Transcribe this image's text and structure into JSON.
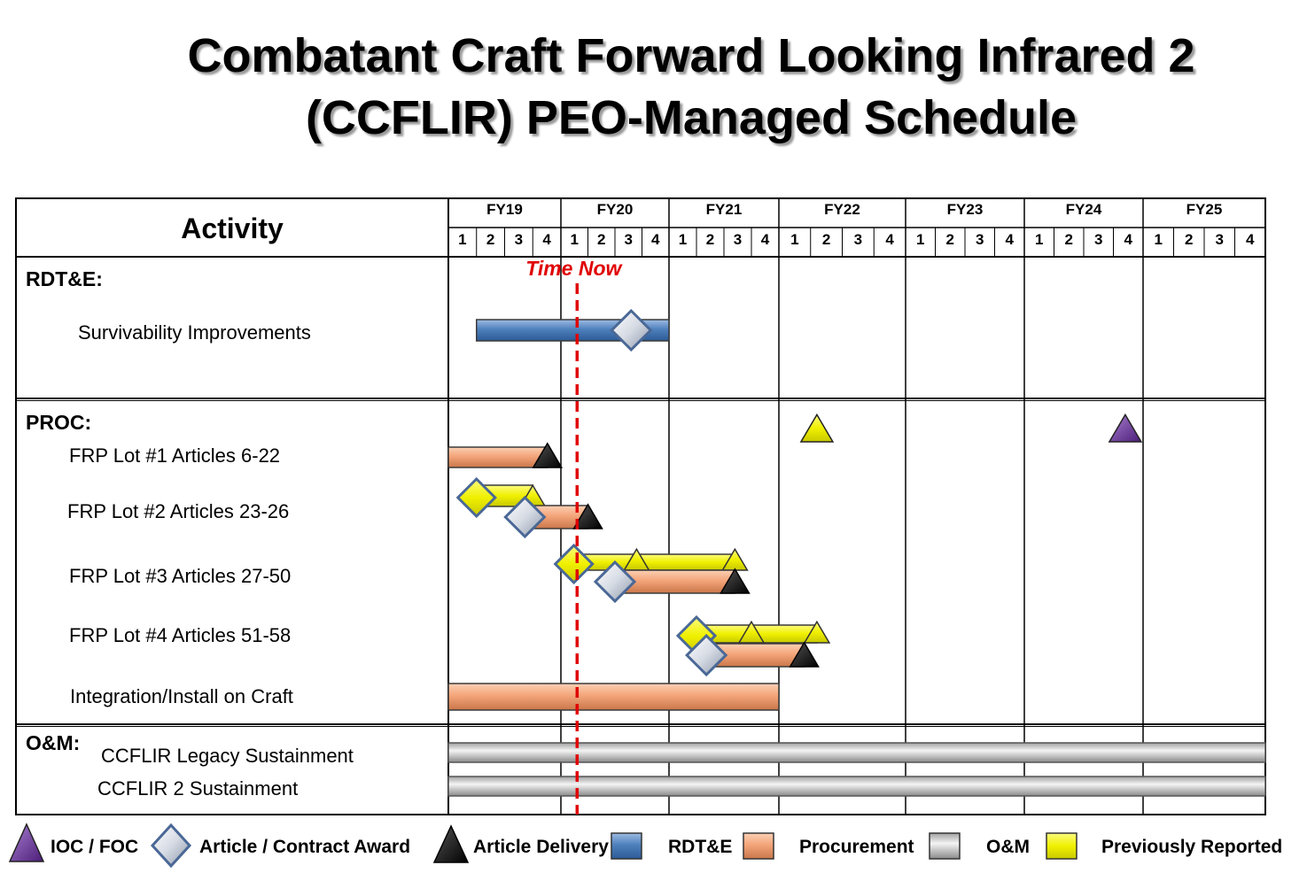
{
  "title": [
    "Combatant Craft Forward Looking Infrared 2",
    "(CCFLIR) PEO-Managed Schedule"
  ],
  "chart_data": {
    "type": "gantt",
    "activity_header": "Activity",
    "time_now_label": "Time Now",
    "time_now": 20.15,
    "fiscal_years": [
      "FY19",
      "FY20",
      "FY21",
      "FY22",
      "FY23",
      "FY24",
      "FY25"
    ],
    "quarters": [
      "1",
      "2",
      "3",
      "4"
    ],
    "sections": [
      {
        "label": "RDT&E:",
        "key": "rdte"
      },
      {
        "label": "PROC:",
        "key": "proc"
      },
      {
        "label": "O&M:",
        "key": "om"
      }
    ],
    "activities": [
      {
        "label": "Survivability Improvements",
        "section": "rdte",
        "type": "rdte",
        "start": 19.25,
        "end": 21.0,
        "milestones": [
          {
            "kind": "award",
            "at": 20.65
          }
        ]
      },
      {
        "label": "FRP Lot #1 Articles 6-22",
        "section": "proc",
        "type": "procurement",
        "start": 19.0,
        "end": 19.88,
        "milestones": [
          {
            "kind": "delivery",
            "at": 19.88
          }
        ]
      },
      {
        "label": "FRP Lot #2 Articles 23-26",
        "section": "proc",
        "type": "procurement",
        "start": 19.7,
        "end": 20.25,
        "previously_reported": {
          "start": 19.25,
          "end": 19.75,
          "milestones": [
            {
              "kind": "award",
              "at": 19.25
            },
            {
              "kind": "delivery",
              "at": 19.75
            }
          ]
        },
        "milestones": [
          {
            "kind": "award",
            "at": 19.68
          },
          {
            "kind": "delivery",
            "at": 20.25
          }
        ]
      },
      {
        "label": "FRP Lot #3 Articles 27-50",
        "section": "proc",
        "type": "procurement",
        "start": 20.5,
        "end": 21.6,
        "previously_reported": {
          "start": 20.12,
          "end": 21.6,
          "milestones": [
            {
              "kind": "award",
              "at": 20.12
            },
            {
              "kind": "delivery",
              "at": 20.7
            },
            {
              "kind": "delivery",
              "at": 21.6
            }
          ]
        },
        "milestones": [
          {
            "kind": "award",
            "at": 20.5
          },
          {
            "kind": "delivery",
            "at": 21.6
          }
        ]
      },
      {
        "label": "FRP Lot #4 Articles 51-58",
        "section": "proc",
        "type": "procurement",
        "start": 21.34,
        "end": 22.2,
        "previously_reported": {
          "start": 21.25,
          "end": 22.3,
          "milestones": [
            {
              "kind": "award",
              "at": 21.25
            },
            {
              "kind": "delivery",
              "at": 21.75
            },
            {
              "kind": "delivery",
              "at": 22.3
            }
          ]
        },
        "milestones": [
          {
            "kind": "award",
            "at": 21.34
          },
          {
            "kind": "delivery",
            "at": 22.2
          }
        ]
      },
      {
        "label": "Integration/Install on Craft",
        "section": "proc",
        "type": "procurement",
        "start": 19.0,
        "end": 22.0,
        "milestones": []
      },
      {
        "label": "CCFLIR Legacy Sustainment",
        "section": "om",
        "type": "om",
        "start": 19.0,
        "end": 26.0,
        "milestones": []
      },
      {
        "label": "CCFLIR 2 Sustainment",
        "section": "om",
        "type": "om",
        "start": 19.0,
        "end": 26.0,
        "milestones": []
      }
    ],
    "ioc_foc": [
      {
        "at": 22.3,
        "color": "previously_reported"
      },
      {
        "at": 24.85,
        "color": "ioc_foc"
      }
    ],
    "legend": [
      {
        "kind": "ioc_foc",
        "label": "IOC / FOC"
      },
      {
        "kind": "award",
        "label": "Article / Contract Award"
      },
      {
        "kind": "delivery",
        "label": "Article Delivery"
      },
      {
        "kind": "rdte",
        "label": "RDT&E"
      },
      {
        "kind": "procurement",
        "label": "Procurement"
      },
      {
        "kind": "om",
        "label": "O&M"
      },
      {
        "kind": "previously_reported",
        "label": "Previously Reported"
      }
    ],
    "colors": {
      "rdte": "#4f81bd",
      "procurement": "#f4a57a",
      "om": "#c8c8c8",
      "previously_reported": "#f5f50a",
      "ioc_foc": "#7030a0",
      "award": "#c0c8d8",
      "delivery": "#000000",
      "time_now": "#e00000"
    }
  }
}
